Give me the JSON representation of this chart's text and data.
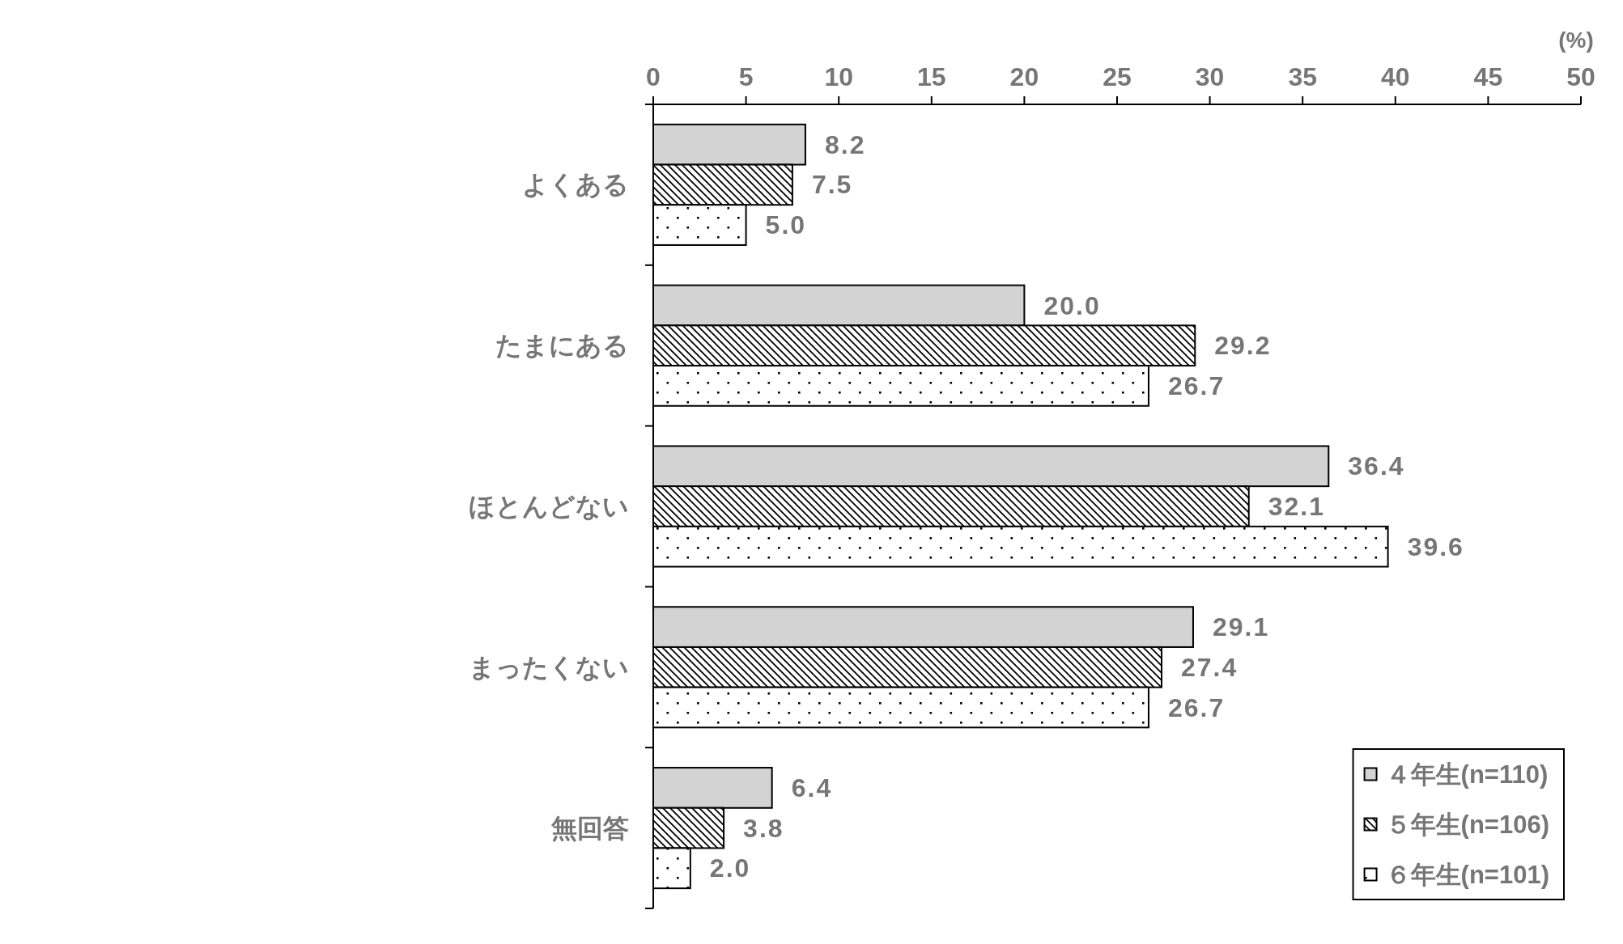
{
  "chart_data": {
    "type": "bar",
    "orientation": "horizontal",
    "xlabel": "(%)",
    "categories": [
      "よくある",
      "たまにある",
      "ほとんどない",
      "まったくない",
      "無回答"
    ],
    "series": [
      {
        "name": "４年生(n=110)",
        "color": "#d3d3d3",
        "values": [
          8.2,
          20.0,
          36.4,
          29.1,
          6.4
        ],
        "value_labels": [
          "8.2",
          "20.0",
          "36.4",
          "29.1",
          "6.4"
        ]
      },
      {
        "name": "５年生(n=106)",
        "color": "#000000",
        "values": [
          7.5,
          29.2,
          32.1,
          27.4,
          3.8
        ],
        "value_labels": [
          "7.5",
          "29.2",
          "32.1",
          "27.4",
          "3.8"
        ]
      },
      {
        "name": "６年生(n=101)",
        "color": "#000000",
        "values": [
          5.0,
          26.7,
          39.6,
          26.7,
          2.0
        ],
        "value_labels": [
          "5.0",
          "26.7",
          "39.6",
          "26.7",
          "2.0"
        ]
      }
    ],
    "xlim": [
      0,
      50
    ],
    "xticks": [
      0,
      5,
      10,
      15,
      20,
      25,
      30,
      35,
      40,
      45,
      50
    ],
    "legend": "bottom right"
  }
}
